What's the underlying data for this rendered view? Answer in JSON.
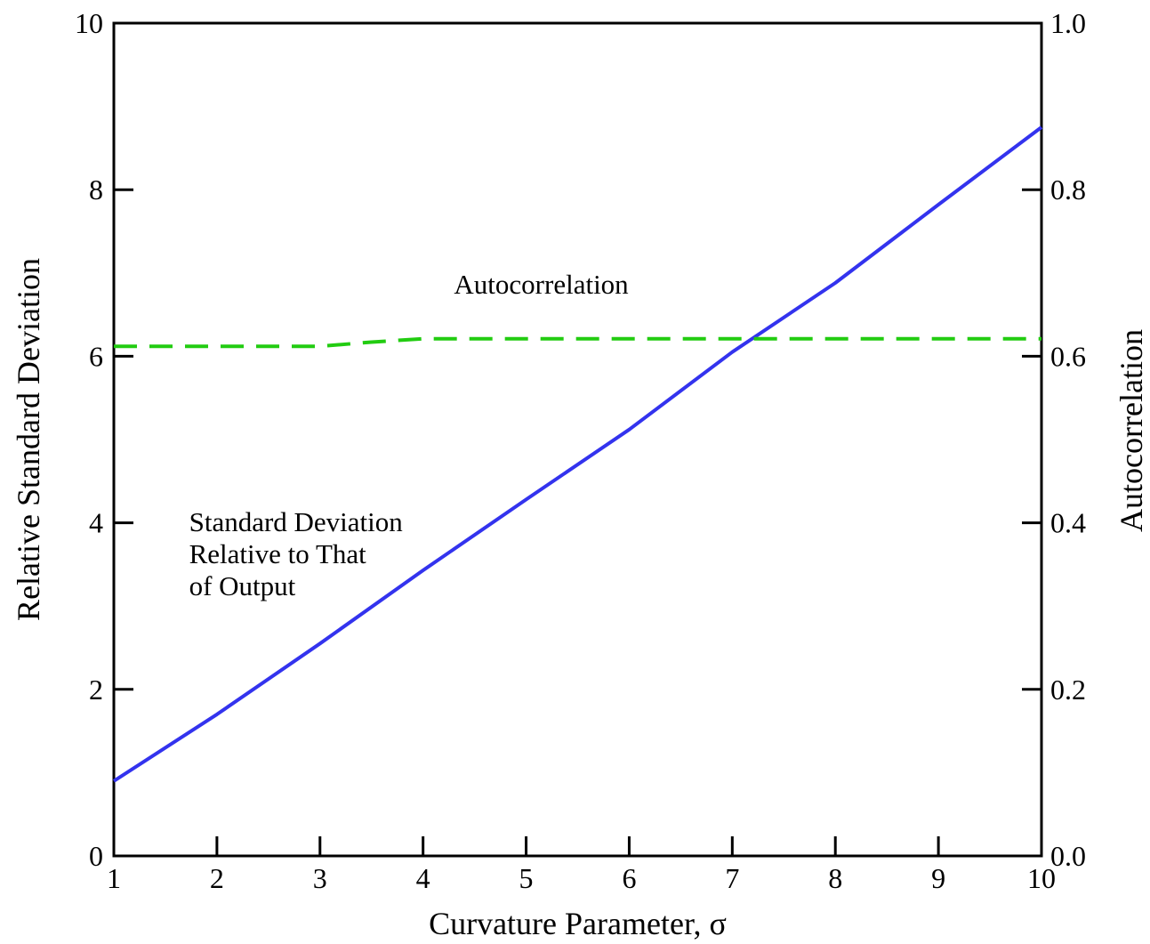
{
  "chart_data": {
    "type": "line",
    "title": "",
    "xlabel": "Curvature Parameter, σ",
    "ylabel": "Relative Standard Deviation",
    "y2label": "Autocorrelation",
    "xlim": [
      1,
      10
    ],
    "ylim": [
      0,
      10
    ],
    "y2lim": [
      0,
      1
    ],
    "grid": false,
    "x_ticks": [
      1,
      2,
      3,
      4,
      5,
      6,
      7,
      8,
      9,
      10
    ],
    "y_ticks": [
      0,
      2,
      4,
      6,
      8,
      10
    ],
    "y2_ticks": [
      0.0,
      0.2,
      0.4,
      0.6,
      0.8,
      1.0
    ],
    "x_tick_labels": [
      "1",
      "2",
      "3",
      "4",
      "5",
      "6",
      "7",
      "8",
      "9",
      "10"
    ],
    "y_tick_labels": [
      "0",
      "2",
      "4",
      "6",
      "8",
      "10"
    ],
    "y2_tick_labels": [
      "0.0",
      "0.2",
      "0.4",
      "0.6",
      "0.8",
      "1.0"
    ],
    "series": [
      {
        "axis": "left",
        "color": "#3333ee",
        "style": "solid",
        "x": [
          1,
          2,
          3,
          4,
          5,
          6,
          7,
          8,
          9,
          10
        ],
        "values": [
          0.9,
          1.7,
          2.55,
          3.43,
          4.28,
          5.12,
          6.05,
          6.88,
          7.82,
          8.75
        ]
      },
      {
        "axis": "right",
        "color": "#22cc11",
        "style": "dashed",
        "x": [
          1,
          2,
          3,
          3.5,
          4,
          5,
          6,
          7,
          8,
          9,
          10
        ],
        "values": [
          0.612,
          0.612,
          0.612,
          0.617,
          0.621,
          0.621,
          0.621,
          0.621,
          0.621,
          0.621,
          0.621
        ]
      }
    ],
    "annotations": [
      {
        "lines": [
          "Autocorrelation"
        ],
        "x": 4.3,
        "y": 6.75
      },
      {
        "lines": [
          "Standard Deviation",
          "Relative to That",
          "of Output"
        ],
        "x": 1.73,
        "y": 3.9
      }
    ]
  }
}
